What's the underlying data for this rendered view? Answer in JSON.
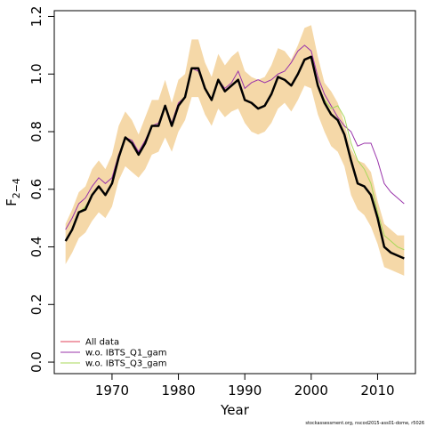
{
  "chart_data": {
    "type": "line",
    "xlabel": "Year",
    "ylabel_main": "F",
    "ylabel_sub": "2−4",
    "xlim": [
      1961.3,
      2015.7
    ],
    "ylim": [
      -0.04,
      1.22
    ],
    "x_ticks": [
      1970,
      1980,
      1990,
      2000,
      2010
    ],
    "x_tick_labels": [
      "1970",
      "1980",
      "1990",
      "2000",
      "2010"
    ],
    "y_ticks": [
      0.0,
      0.2,
      0.4,
      0.6,
      0.8,
      1.0,
      1.2
    ],
    "y_tick_labels": [
      "0.0",
      "0.2",
      "0.4",
      "0.6",
      "0.8",
      "1.0",
      "1.2"
    ],
    "grid": false,
    "legend_position": "bottom-left",
    "footnote": "stockassessment.org, nscod2015-ass01-dome, r5026",
    "x": [
      1963,
      1964,
      1965,
      1966,
      1967,
      1968,
      1969,
      1970,
      1971,
      1972,
      1973,
      1974,
      1975,
      1976,
      1977,
      1978,
      1979,
      1980,
      1981,
      1982,
      1983,
      1984,
      1985,
      1986,
      1987,
      1988,
      1989,
      1990,
      1991,
      1992,
      1993,
      1994,
      1995,
      1996,
      1997,
      1998,
      1999,
      2000,
      2001,
      2002,
      2003,
      2004,
      2005,
      2006,
      2007,
      2008,
      2009,
      2010,
      2011,
      2012,
      2013,
      2014
    ],
    "band": {
      "color": "#f5d8a8",
      "lower": [
        0.34,
        0.38,
        0.43,
        0.45,
        0.49,
        0.52,
        0.5,
        0.54,
        0.63,
        0.68,
        0.66,
        0.64,
        0.67,
        0.72,
        0.73,
        0.78,
        0.73,
        0.8,
        0.84,
        0.92,
        0.92,
        0.86,
        0.82,
        0.88,
        0.85,
        0.87,
        0.88,
        0.83,
        0.8,
        0.79,
        0.8,
        0.83,
        0.88,
        0.9,
        0.87,
        0.91,
        0.96,
        0.95,
        0.86,
        0.8,
        0.75,
        0.73,
        0.68,
        0.58,
        0.53,
        0.51,
        0.47,
        0.41,
        0.33,
        0.32,
        0.31,
        0.3
      ],
      "upper": [
        0.48,
        0.53,
        0.59,
        0.61,
        0.67,
        0.7,
        0.67,
        0.72,
        0.82,
        0.87,
        0.84,
        0.79,
        0.85,
        0.91,
        0.91,
        0.98,
        0.9,
        0.98,
        1.0,
        1.12,
        1.12,
        1.04,
        0.99,
        1.07,
        1.03,
        1.06,
        1.08,
        1.01,
        0.99,
        0.98,
        0.99,
        1.03,
        1.09,
        1.08,
        1.05,
        1.1,
        1.16,
        1.17,
        1.06,
        0.97,
        0.94,
        0.9,
        0.83,
        0.74,
        0.7,
        0.69,
        0.66,
        0.56,
        0.48,
        0.46,
        0.44,
        0.44
      ]
    },
    "series": [
      {
        "name": "All data",
        "color": "#e0405a",
        "values": [
          0.42,
          0.46,
          0.52,
          0.53,
          0.58,
          0.61,
          0.58,
          0.62,
          0.71,
          0.78,
          0.76,
          0.72,
          0.76,
          0.82,
          0.82,
          0.89,
          0.82,
          0.89,
          0.92,
          1.02,
          1.02,
          0.95,
          0.91,
          0.98,
          0.94,
          0.96,
          0.98,
          0.91,
          0.9,
          0.88,
          0.89,
          0.93,
          0.99,
          0.98,
          0.96,
          1.0,
          1.05,
          1.06,
          0.96,
          0.9,
          0.86,
          0.84,
          0.79,
          0.7,
          0.62,
          0.61,
          0.58,
          0.5,
          0.4,
          0.38,
          0.37,
          0.36
        ]
      },
      {
        "name": "w.o. IBTS_Q1_gam",
        "color": "#9933aa",
        "values": [
          0.46,
          0.5,
          0.55,
          0.57,
          0.61,
          0.64,
          0.62,
          0.64,
          0.72,
          0.78,
          0.77,
          0.73,
          0.77,
          0.82,
          0.83,
          0.89,
          0.83,
          0.9,
          0.92,
          1.02,
          1.01,
          0.95,
          0.91,
          0.98,
          0.95,
          0.97,
          1.01,
          0.95,
          0.97,
          0.98,
          0.97,
          0.98,
          1.0,
          1.01,
          1.04,
          1.08,
          1.1,
          1.08,
          0.99,
          0.93,
          0.89,
          0.85,
          0.82,
          0.8,
          0.75,
          0.76,
          0.76,
          0.7,
          0.62,
          0.59,
          0.57,
          0.55
        ]
      },
      {
        "name": "w.o. IBTS_Q3_gam",
        "color": "#a8d85a",
        "values": [
          0.42,
          0.46,
          0.52,
          0.54,
          0.58,
          0.61,
          0.58,
          0.62,
          0.71,
          0.78,
          0.76,
          0.72,
          0.76,
          0.82,
          0.82,
          0.89,
          0.82,
          0.89,
          0.92,
          1.02,
          1.02,
          0.95,
          0.91,
          0.98,
          0.94,
          0.96,
          0.98,
          0.91,
          0.9,
          0.88,
          0.89,
          0.93,
          0.99,
          0.98,
          0.96,
          1.0,
          1.05,
          1.06,
          0.96,
          0.91,
          0.88,
          0.89,
          0.85,
          0.76,
          0.7,
          0.67,
          0.62,
          0.52,
          0.44,
          0.42,
          0.4,
          0.39
        ]
      }
    ],
    "main_line": {
      "color": "#000000",
      "values": [
        0.42,
        0.46,
        0.52,
        0.53,
        0.58,
        0.61,
        0.58,
        0.62,
        0.71,
        0.78,
        0.76,
        0.72,
        0.76,
        0.82,
        0.82,
        0.89,
        0.82,
        0.89,
        0.92,
        1.02,
        1.02,
        0.95,
        0.91,
        0.98,
        0.94,
        0.96,
        0.98,
        0.91,
        0.9,
        0.88,
        0.89,
        0.93,
        0.99,
        0.98,
        0.96,
        1.0,
        1.05,
        1.06,
        0.96,
        0.9,
        0.86,
        0.84,
        0.79,
        0.7,
        0.62,
        0.61,
        0.58,
        0.5,
        0.4,
        0.38,
        0.37,
        0.36
      ]
    }
  }
}
